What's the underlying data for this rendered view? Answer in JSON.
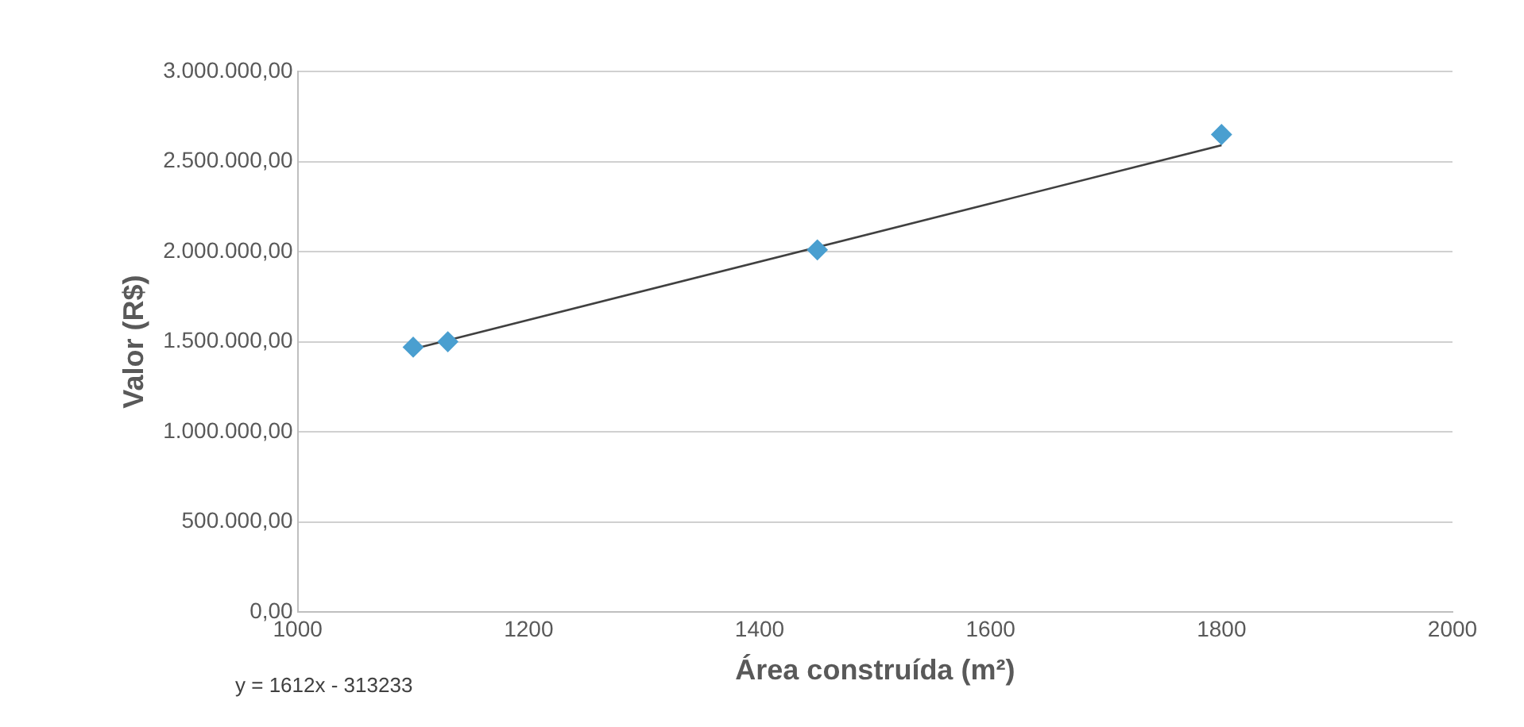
{
  "chart_data": {
    "type": "scatter",
    "xlabel": "Área construída (m²)",
    "ylabel": "Valor (R$)",
    "x": [
      1100,
      1130,
      1450,
      1800
    ],
    "series": [
      {
        "color": "#4a9fd0",
        "marker": "diamond",
        "values": [
          1470000,
          1500000,
          2010000,
          2650000
        ]
      },
      {
        "type": "line",
        "color": "#404040",
        "marker": "none",
        "x": [
          1100,
          1800
        ],
        "values": [
          1460000,
          2590000
        ]
      }
    ],
    "xlim": [
      1000,
      2000
    ],
    "xticks": [
      1000,
      1200,
      1400,
      1600,
      1800,
      2000
    ],
    "ylim": [
      0,
      3000000
    ],
    "yticks": [
      {
        "value": 0,
        "label": "0,00"
      },
      {
        "value": 500000,
        "label": "500.000,00"
      },
      {
        "value": 1000000,
        "label": "1.000.000,00"
      },
      {
        "value": 1500000,
        "label": "1.500.000,00"
      },
      {
        "value": 2000000,
        "label": "2.000.000,00"
      },
      {
        "value": 2500000,
        "label": "2.500.000,00"
      },
      {
        "value": 3000000,
        "label": "3.000.000,00"
      }
    ],
    "grid": "y",
    "legend": false,
    "annotations": [
      "y = 1612x - 313233"
    ]
  }
}
